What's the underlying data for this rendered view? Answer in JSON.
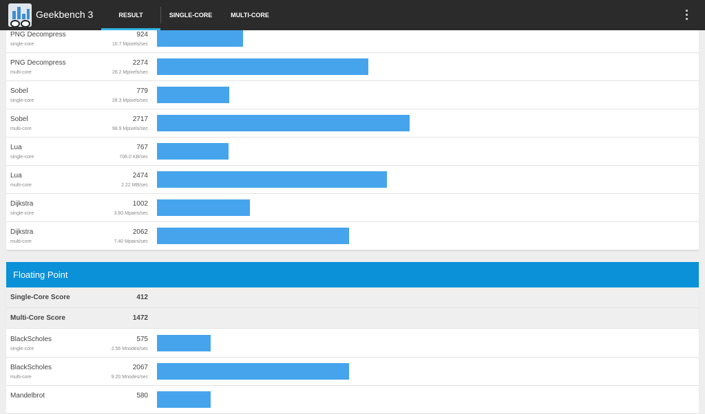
{
  "app": {
    "title": "Geekbench 3"
  },
  "tabs": [
    {
      "label": "RESULT",
      "active": true
    },
    {
      "label": "SINGLE-CORE",
      "active": false
    },
    {
      "label": "MULTI-CORE",
      "active": false
    }
  ],
  "integer_rows": [
    {
      "name": "PNG Decompress",
      "core": "single-core",
      "score": "924",
      "rate": "10.7 Mpixels/sec",
      "value": 924
    },
    {
      "name": "PNG Decompress",
      "core": "multi-core",
      "score": "2274",
      "rate": "26.2 Mpixels/sec",
      "value": 2274
    },
    {
      "name": "Sobel",
      "core": "single-core",
      "score": "779",
      "rate": "28.3 Mpixels/sec",
      "value": 779
    },
    {
      "name": "Sobel",
      "core": "multi-core",
      "score": "2717",
      "rate": "98.9 Mpixels/sec",
      "value": 2717
    },
    {
      "name": "Lua",
      "core": "single-core",
      "score": "767",
      "rate": "706.0 KB/sec",
      "value": 767
    },
    {
      "name": "Lua",
      "core": "multi-core",
      "score": "2474",
      "rate": "2.22 MB/sec",
      "value": 2474
    },
    {
      "name": "Dijkstra",
      "core": "single-core",
      "score": "1002",
      "rate": "3.60 Mpairs/sec",
      "value": 1002
    },
    {
      "name": "Dijkstra",
      "core": "multi-core",
      "score": "2062",
      "rate": "7.40 Mpairs/sec",
      "value": 2062
    }
  ],
  "floating_point": {
    "title": "Floating Point",
    "single_core_label": "Single-Core Score",
    "single_core_score": "412",
    "multi_core_label": "Multi-Core Score",
    "multi_core_score": "1472",
    "rows": [
      {
        "name": "BlackScholes",
        "core": "single-core",
        "score": "575",
        "rate": "2.56 Mnodes/sec",
        "value": 575
      },
      {
        "name": "BlackScholes",
        "core": "multi-core",
        "score": "2067",
        "rate": "9.20 Mnodes/sec",
        "value": 2067
      },
      {
        "name": "Mandelbrot",
        "core": "",
        "score": "580",
        "rate": "",
        "value": 580
      }
    ]
  },
  "colors": {
    "bar": "#46a4ec",
    "section_header": "#0a91d8",
    "topbar": "#2b2b2b",
    "tab_indicator": "#33b5e5"
  },
  "icons": {
    "menu": "overflow-menu-icon",
    "app": "geekbench-app-icon"
  }
}
